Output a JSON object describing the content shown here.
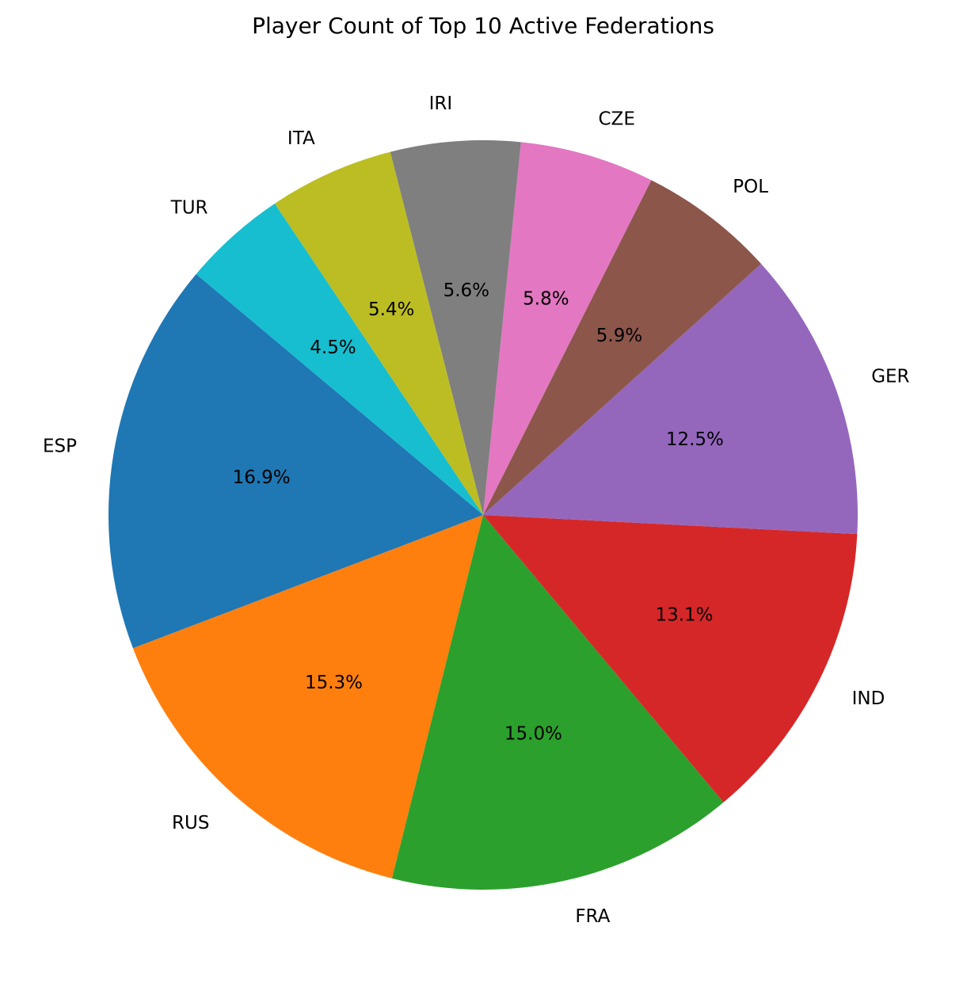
{
  "chart_data": {
    "type": "pie",
    "title": "Player Count of Top 10 Active Federations",
    "categories": [
      "ESP",
      "RUS",
      "FRA",
      "IND",
      "GER",
      "POL",
      "CZE",
      "IRI",
      "ITA",
      "TUR"
    ],
    "values": [
      16.9,
      15.3,
      15.0,
      13.1,
      12.5,
      5.9,
      5.8,
      5.6,
      5.4,
      4.5
    ],
    "percent_labels": [
      "16.9%",
      "15.3%",
      "15.0%",
      "13.1%",
      "12.5%",
      "5.9%",
      "5.8%",
      "5.6%",
      "5.4%",
      "4.5%"
    ],
    "colors": [
      "#1f77b4",
      "#ff7f0e",
      "#2ca02c",
      "#d62728",
      "#9467bd",
      "#8c564b",
      "#e377c2",
      "#7f7f7f",
      "#bcbd22",
      "#17becf"
    ],
    "start_angle_deg": 140,
    "direction": "counterclockwise",
    "legend": "none"
  }
}
